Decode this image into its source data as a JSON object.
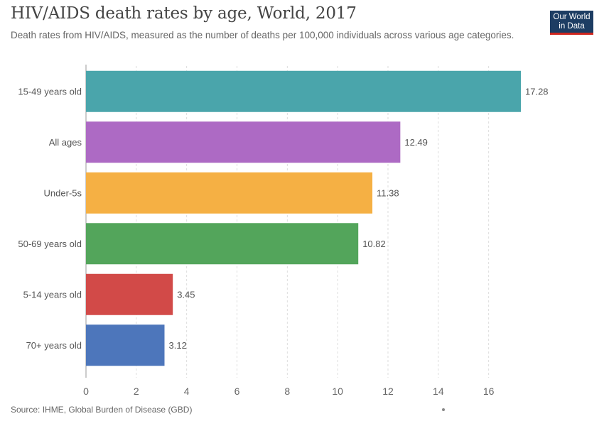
{
  "header": {
    "title": "HIV/AIDS death rates by age, World, 2017",
    "subtitle": "Death rates from HIV/AIDS, measured as the number of deaths per 100,000 individuals across various age categories."
  },
  "logo": {
    "line1": "Our World",
    "line2": "in Data",
    "bg_color": "#1d3d63",
    "accent_color": "#ce261e"
  },
  "footer": {
    "source": "Source: IHME, Global Burden of Disease (GBD)"
  },
  "chart_data": {
    "type": "bar",
    "orientation": "horizontal",
    "title": "HIV/AIDS death rates by age, World, 2017",
    "subtitle": "Death rates from HIV/AIDS, measured as the number of deaths per 100,000 individuals across various age categories.",
    "xlabel": "",
    "ylabel": "",
    "categories": [
      "15-49 years old",
      "All ages",
      "Under-5s",
      "50-69 years old",
      "5-14 years old",
      "70+ years old"
    ],
    "values": [
      17.28,
      12.49,
      11.38,
      10.82,
      3.45,
      3.12
    ],
    "value_labels": [
      "17.28",
      "12.49",
      "11.38",
      "10.82",
      "3.45",
      "3.12"
    ],
    "colors": [
      "#4aa5ab",
      "#ad6ac4",
      "#f5b044",
      "#53a55b",
      "#d24a48",
      "#4d76bb"
    ],
    "xticks": [
      0,
      2,
      4,
      6,
      8,
      10,
      12,
      14,
      16
    ],
    "xlim": [
      0,
      17.28
    ],
    "grid": true,
    "legend": "none"
  }
}
